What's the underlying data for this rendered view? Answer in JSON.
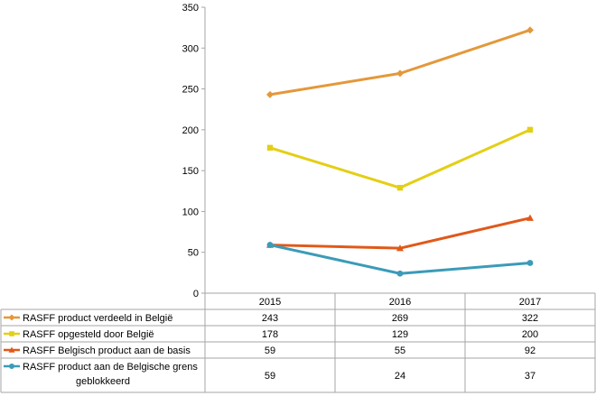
{
  "chart_data": {
    "type": "line",
    "title": "",
    "xlabel": "",
    "ylabel": "",
    "ylim": [
      0,
      350
    ],
    "yticks": [
      0,
      50,
      100,
      150,
      200,
      250,
      300,
      350
    ],
    "categories": [
      "2015",
      "2016",
      "2017"
    ],
    "grid": false,
    "legend": "data-table-left",
    "series": [
      {
        "name": "RASFF product verdeeld in België",
        "values": [
          243,
          269,
          322
        ],
        "color": "#E4983A",
        "marker": "diamond"
      },
      {
        "name": "RASFF opgesteld door België",
        "values": [
          178,
          129,
          200
        ],
        "color": "#E3CF16",
        "marker": "square"
      },
      {
        "name": "RASFF Belgisch product aan de basis",
        "values": [
          59,
          55,
          92
        ],
        "color": "#E0591A",
        "marker": "triangle"
      },
      {
        "name": "RASFF product aan de Belgische grens geblokkeerd",
        "name_lines": [
          "RASFF product aan de Belgische grens",
          "geblokkeerd"
        ],
        "values": [
          59,
          24,
          37
        ],
        "color": "#3B9BB8",
        "marker": "circle"
      }
    ]
  }
}
